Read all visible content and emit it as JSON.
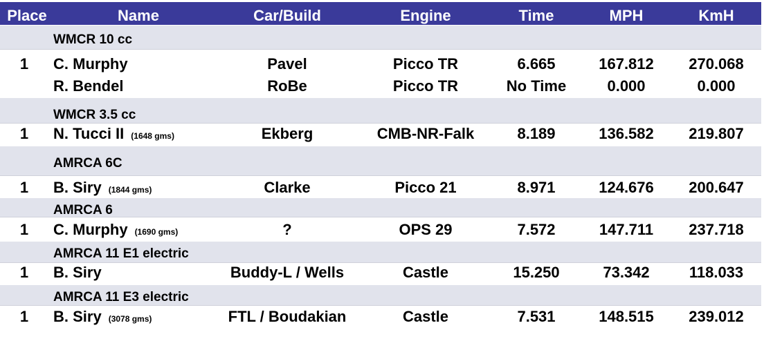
{
  "header": {
    "place": "Place",
    "name": "Name",
    "car": "Car/Build",
    "engine": "Engine",
    "time": "Time",
    "mph": "MPH",
    "kmh": "KmH"
  },
  "groups": [
    {
      "category": "WMCR 10 cc",
      "rows": [
        {
          "place": "1",
          "name": "C. Murphy",
          "weight": "",
          "car": "Pavel",
          "engine": "Picco TR",
          "time": "6.665",
          "mph": "167.812",
          "kmh": "270.068"
        },
        {
          "place": "",
          "name": "R. Bendel",
          "weight": "",
          "car": "RoBe",
          "engine": "Picco TR",
          "time": "No Time",
          "mph": "0.000",
          "kmh": "0.000"
        }
      ]
    },
    {
      "category": "WMCR 3.5 cc",
      "rows": [
        {
          "place": "1",
          "name": "N. Tucci II",
          "weight": "(1648 gms)",
          "car": "Ekberg",
          "engine": "CMB-NR-Falk",
          "time": "8.189",
          "mph": "136.582",
          "kmh": "219.807"
        }
      ]
    },
    {
      "category": "AMRCA 6C",
      "rows": [
        {
          "place": "1",
          "name": "B. Siry",
          "weight": "(1844 gms)",
          "car": "Clarke",
          "engine": "Picco 21",
          "time": "8.971",
          "mph": "124.676",
          "kmh": "200.647"
        }
      ]
    },
    {
      "category": "AMRCA 6",
      "rows": [
        {
          "place": "1",
          "name": "C. Murphy",
          "weight": "(1690 gms)",
          "car": "?",
          "engine": "OPS 29",
          "time": "7.572",
          "mph": "147.711",
          "kmh": "237.718"
        }
      ]
    },
    {
      "category": "AMRCA 11 E1 electric",
      "rows": [
        {
          "place": "1",
          "name": "B. Siry",
          "weight": "",
          "car": "Buddy-L / Wells",
          "engine": "Castle",
          "time": "15.250",
          "mph": "73.342",
          "kmh": "118.033"
        }
      ]
    },
    {
      "category": "AMRCA 11 E3 electric",
      "rows": [
        {
          "place": "1",
          "name": "B. Siry",
          "weight": "(3078 gms)",
          "car": "FTL / Boudakian",
          "engine": "Castle",
          "time": "7.531",
          "mph": "148.515",
          "kmh": "239.012"
        }
      ]
    }
  ],
  "colors": {
    "header_bg": "#3a3a9a",
    "header_text": "#ffffff",
    "band_bg": "#e1e3ec"
  }
}
